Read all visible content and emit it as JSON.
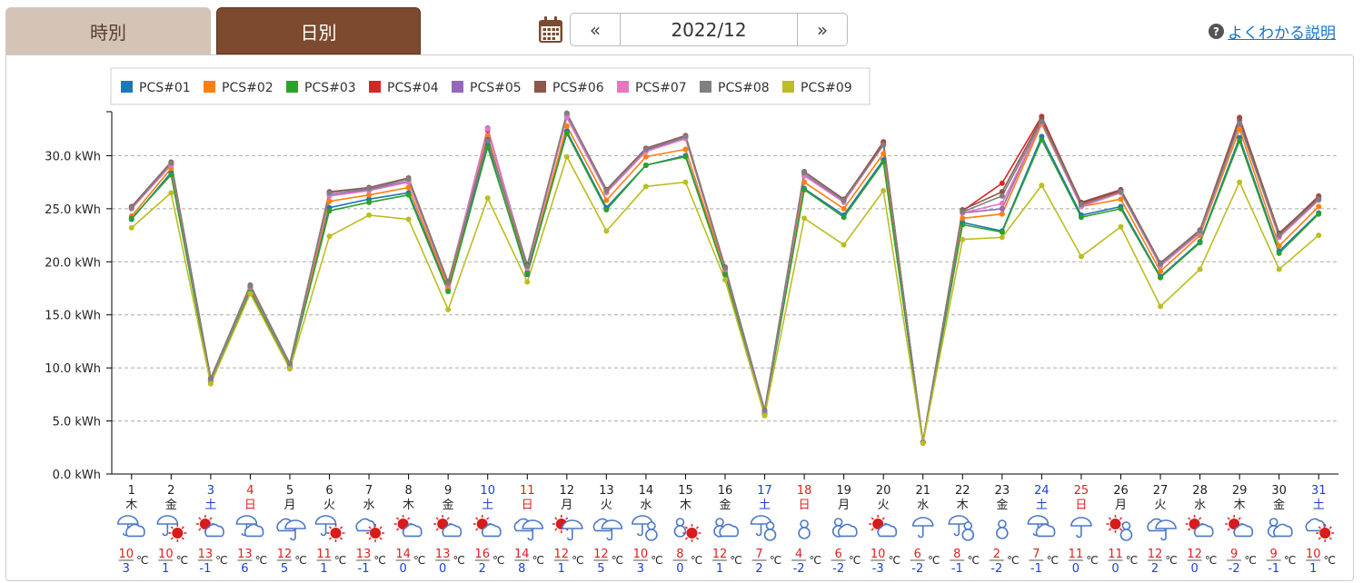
{
  "tabs": {
    "hourly": "時別",
    "daily": "日別"
  },
  "nav": {
    "prev": "«",
    "month": "2022/12",
    "next": "»"
  },
  "help": {
    "icon": "?",
    "label": "よくわかる説明"
  },
  "colors": [
    "#1f77b4",
    "#ff7f0e",
    "#2ca02c",
    "#d62728",
    "#9467bd",
    "#8c564b",
    "#e377c2",
    "#7f7f7f",
    "#bcbd22"
  ],
  "chart_data": {
    "type": "line",
    "ylim": [
      0,
      35
    ],
    "yticks": [
      "0.0 kWh",
      "5.0 kWh",
      "10.0 kWh",
      "15.0 kWh",
      "20.0 kWh",
      "25.0 kWh",
      "30.0 kWh"
    ],
    "grid": "horizontal dashed",
    "legend_position": "top-left",
    "days": [
      "1",
      "2",
      "3",
      "4",
      "5",
      "6",
      "7",
      "8",
      "9",
      "10",
      "11",
      "12",
      "13",
      "14",
      "15",
      "16",
      "17",
      "18",
      "19",
      "20",
      "21",
      "22",
      "23",
      "24",
      "25",
      "26",
      "27",
      "28",
      "29",
      "30",
      "31"
    ],
    "weekdays": [
      "木",
      "金",
      "土",
      "日",
      "月",
      "火",
      "水",
      "木",
      "金",
      "土",
      "日",
      "月",
      "火",
      "水",
      "木",
      "金",
      "土",
      "日",
      "月",
      "火",
      "水",
      "木",
      "金",
      "土",
      "日",
      "月",
      "火",
      "水",
      "木",
      "金",
      "土"
    ],
    "high": [
      "10",
      "10",
      "13",
      "13",
      "12",
      "11",
      "13",
      "14",
      "13",
      "16",
      "14",
      "12",
      "12",
      "10",
      "8",
      "12",
      "7",
      "4",
      "6",
      "10",
      "6",
      "8",
      "2",
      "7",
      "11",
      "11",
      "12",
      "12",
      "9",
      "9",
      "10"
    ],
    "low": [
      "3",
      "1",
      "-1",
      "6",
      "5",
      "1",
      "-1",
      "0",
      "0",
      "2",
      "8",
      "1",
      "5",
      "3",
      "0",
      "1",
      "2",
      "-2",
      "-2",
      "-3",
      "-2",
      "-1",
      "-2",
      "-1",
      "0",
      "0",
      "2",
      "0",
      "-2",
      "-1",
      "1"
    ],
    "temp_unit": "℃",
    "weather": [
      "rain-cloud",
      "rain-sun",
      "sun-cloud",
      "rain-cloud",
      "cloud-rain",
      "rain-sun",
      "cloud-sun",
      "sun-cloud",
      "sun-cloud",
      "sun-cloud",
      "cloud-rain",
      "sun-rain",
      "cloud-rain",
      "rain-snow",
      "snow-sun",
      "snow-cloud",
      "rain-snow",
      "snow",
      "snow-cloud",
      "sun-cloud",
      "rain",
      "rain-snow",
      "snow",
      "rain-cloud",
      "rain",
      "sun-snow",
      "cloud-rain",
      "sun-cloud",
      "sun-cloud",
      "snow-cloud",
      "cloud-sun"
    ],
    "series": [
      {
        "name": "PCS#01",
        "values": [
          24.0,
          28.4,
          8.8,
          17.3,
          10.2,
          25.1,
          25.9,
          26.5,
          17.4,
          31.0,
          18.8,
          32.3,
          25.1,
          29.1,
          30.0,
          19.0,
          5.8,
          26.9,
          24.4,
          29.6,
          3.0,
          23.7,
          22.9,
          31.8,
          24.4,
          25.2,
          18.6,
          21.9,
          31.7,
          21.0,
          24.6
        ]
      },
      {
        "name": "PCS#02",
        "values": [
          24.3,
          28.8,
          8.9,
          17.5,
          10.2,
          25.7,
          26.3,
          27.0,
          17.6,
          31.8,
          19.0,
          32.8,
          25.8,
          29.9,
          30.6,
          19.1,
          5.8,
          27.5,
          25.0,
          30.2,
          3.0,
          24.1,
          24.5,
          33.0,
          25.2,
          25.9,
          19.1,
          22.5,
          32.5,
          21.5,
          25.2
        ]
      },
      {
        "name": "PCS#03",
        "values": [
          24.1,
          28.2,
          8.7,
          17.2,
          10.1,
          24.8,
          25.6,
          26.3,
          17.2,
          30.8,
          19.0,
          32.1,
          24.9,
          29.1,
          29.9,
          18.8,
          5.7,
          26.8,
          24.2,
          29.4,
          3.0,
          23.5,
          22.8,
          31.5,
          24.2,
          25.0,
          18.5,
          21.8,
          31.4,
          20.8,
          24.5
        ]
      },
      {
        "name": "PCS#04",
        "values": [
          25.1,
          29.3,
          9.0,
          17.7,
          10.4,
          26.5,
          26.9,
          27.8,
          18.0,
          32.4,
          19.6,
          33.9,
          26.7,
          30.6,
          31.8,
          19.4,
          5.9,
          28.4,
          25.8,
          31.3,
          3.0,
          24.8,
          27.4,
          33.7,
          25.5,
          26.7,
          19.8,
          22.9,
          33.6,
          22.6,
          26.2
        ]
      },
      {
        "name": "PCS#05",
        "values": [
          25.0,
          29.2,
          9.0,
          17.6,
          10.3,
          26.3,
          26.8,
          27.6,
          17.9,
          32.6,
          19.5,
          33.8,
          26.6,
          30.5,
          31.7,
          19.3,
          5.9,
          28.2,
          25.7,
          31.1,
          3.0,
          24.6,
          25.0,
          33.3,
          25.3,
          26.6,
          19.7,
          22.8,
          33.3,
          22.4,
          26.0
        ]
      },
      {
        "name": "PCS#06",
        "values": [
          25.2,
          29.4,
          9.0,
          17.8,
          10.4,
          26.6,
          27.0,
          27.9,
          18.1,
          31.5,
          19.7,
          34.0,
          26.8,
          30.7,
          31.9,
          19.5,
          6.0,
          28.5,
          25.9,
          31.2,
          3.0,
          24.9,
          26.6,
          33.5,
          25.6,
          26.8,
          19.9,
          23.0,
          33.5,
          22.7,
          26.1
        ]
      },
      {
        "name": "PCS#07",
        "values": [
          25.0,
          29.1,
          8.9,
          17.6,
          10.3,
          26.2,
          26.7,
          27.5,
          17.9,
          32.5,
          19.4,
          33.6,
          26.5,
          30.4,
          31.6,
          19.3,
          5.9,
          28.1,
          25.6,
          31.0,
          3.0,
          24.6,
          25.5,
          33.1,
          25.2,
          26.5,
          19.6,
          22.7,
          33.0,
          22.3,
          25.8
        ]
      },
      {
        "name": "PCS#08",
        "values": [
          25.1,
          29.3,
          9.0,
          17.7,
          10.4,
          26.5,
          26.9,
          27.8,
          18.0,
          31.4,
          19.6,
          34.0,
          26.7,
          30.6,
          31.8,
          19.4,
          6.0,
          28.4,
          25.8,
          31.0,
          3.0,
          24.7,
          26.2,
          33.2,
          25.4,
          26.6,
          19.8,
          22.9,
          33.0,
          22.5,
          25.9
        ]
      },
      {
        "name": "PCS#09",
        "values": [
          23.2,
          26.5,
          8.5,
          17.0,
          9.9,
          22.4,
          24.4,
          24.0,
          15.5,
          26.0,
          18.1,
          29.9,
          22.9,
          27.1,
          27.5,
          18.3,
          5.5,
          24.1,
          21.6,
          26.7,
          2.9,
          22.1,
          22.3,
          27.2,
          20.5,
          23.3,
          15.8,
          19.3,
          27.5,
          19.3,
          22.5
        ]
      }
    ]
  }
}
